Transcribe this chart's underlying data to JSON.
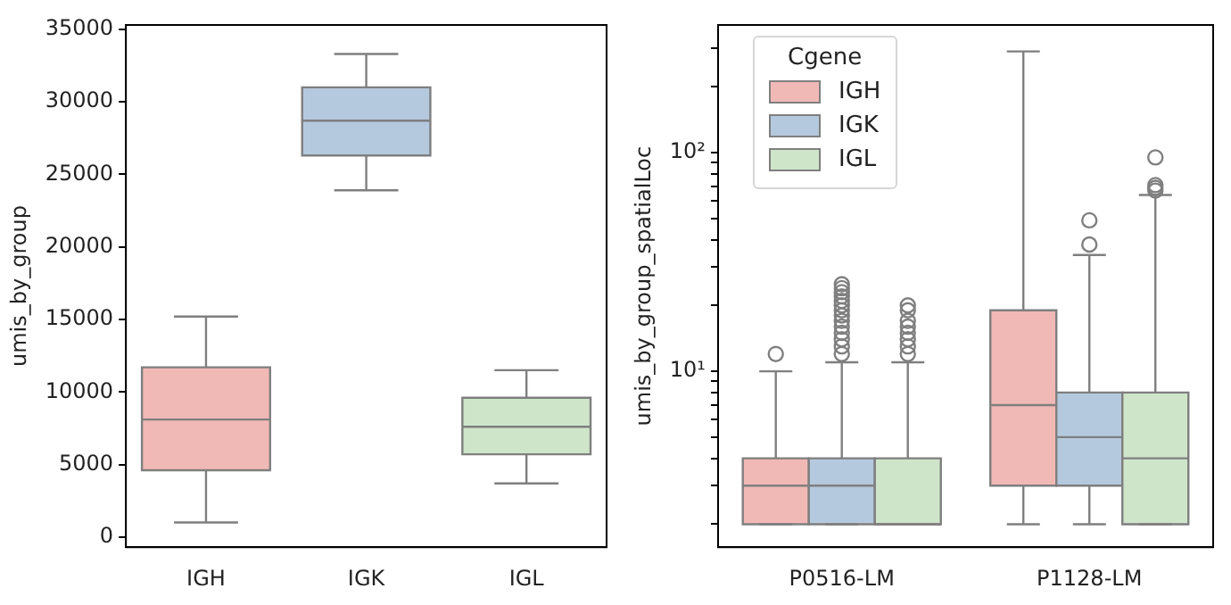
{
  "chart_data": [
    {
      "type": "box",
      "ylabel": "umis_by_group",
      "categories": [
        "IGH",
        "IGK",
        "IGL"
      ],
      "colors": [
        "#f1b9b6",
        "#b5c9de",
        "#cfe5ca"
      ],
      "boxes": [
        {
          "low": 1000,
          "q1": 4600,
          "median": 8100,
          "q3": 11700,
          "high": 15200
        },
        {
          "low": 23900,
          "q1": 26300,
          "median": 28700,
          "q3": 31000,
          "high": 33300
        },
        {
          "low": 3700,
          "q1": 5700,
          "median": 7600,
          "q3": 9600,
          "high": 11500
        }
      ],
      "ylim": [
        -700,
        35300
      ],
      "yticks": [
        0,
        5000,
        10000,
        15000,
        20000,
        25000,
        30000,
        35000
      ],
      "grid": false,
      "legend": false
    },
    {
      "type": "box",
      "ylabel": "umis_by_group_spatialLoc",
      "legend_title": "Cgene",
      "categories": [
        "P0516-LM",
        "P1128-LM"
      ],
      "log": true,
      "ylim": [
        1.57,
        383
      ],
      "yticks": [
        {
          "value": 2,
          "label": null
        },
        {
          "value": 3,
          "label": null
        },
        {
          "value": 4,
          "label": null
        },
        {
          "value": 5,
          "label": null
        },
        {
          "value": 6,
          "label": null
        },
        {
          "value": 7,
          "label": null
        },
        {
          "value": 8,
          "label": null
        },
        {
          "value": 9,
          "label": null
        },
        {
          "value": 10,
          "label": "10¹"
        },
        {
          "value": 20,
          "label": null
        },
        {
          "value": 30,
          "label": null
        },
        {
          "value": 40,
          "label": null
        },
        {
          "value": 50,
          "label": null
        },
        {
          "value": 60,
          "label": null
        },
        {
          "value": 70,
          "label": null
        },
        {
          "value": 80,
          "label": null
        },
        {
          "value": 90,
          "label": null
        },
        {
          "value": 100,
          "label": "10²"
        },
        {
          "value": 200,
          "label": null
        },
        {
          "value": 300,
          "label": null
        }
      ],
      "series": [
        {
          "name": "IGH",
          "color": "#f1b9b6",
          "boxes": [
            {
              "low": 2,
              "q1": 2,
              "median": 3,
              "q3": 4,
              "high": 10,
              "outliers": [
                12
              ]
            },
            {
              "low": 2,
              "q1": 3,
              "median": 7,
              "q3": 19,
              "high": 290
            }
          ]
        },
        {
          "name": "IGK",
          "color": "#b5c9de",
          "boxes": [
            {
              "low": 2,
              "q1": 2,
              "median": 3,
              "q3": 4,
              "high": 11,
              "outliers": [
                12,
                13,
                14,
                15,
                16,
                17,
                18,
                19,
                20,
                21,
                22,
                23,
                24,
                25
              ]
            },
            {
              "low": 2,
              "q1": 3,
              "median": 5,
              "q3": 8,
              "high": 34,
              "outliers": [
                38,
                49
              ]
            }
          ]
        },
        {
          "name": "IGL",
          "color": "#cfe5ca",
          "boxes": [
            {
              "low": 2,
              "q1": 2,
              "median": 2,
              "q3": 4,
              "high": 11,
              "outliers": [
                12,
                13,
                14,
                15,
                16,
                17,
                19,
                20
              ]
            },
            {
              "low": 2,
              "q1": 2,
              "median": 4,
              "q3": 8,
              "high": 64,
              "outliers": [
                67,
                69,
                71,
                95
              ]
            }
          ]
        }
      ],
      "grid": false,
      "legend": "top left"
    }
  ]
}
